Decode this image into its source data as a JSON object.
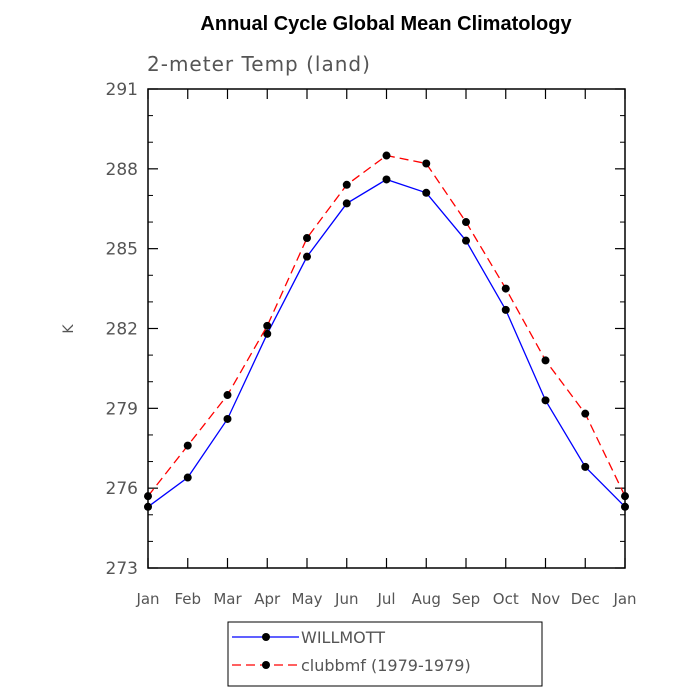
{
  "chart_data": {
    "type": "line",
    "title": "Annual Cycle Global Mean Climatology",
    "subtitle": "2-meter Temp (land)",
    "ylabel": "K",
    "xlabel": "",
    "ylim": [
      273,
      291
    ],
    "yticks": [
      273,
      276,
      279,
      282,
      285,
      288,
      291
    ],
    "yticks_labels": [
      "273",
      "276",
      "279",
      "282",
      "285",
      "288",
      "291"
    ],
    "categories": [
      "Jan",
      "Feb",
      "Mar",
      "Apr",
      "May",
      "Jun",
      "Jul",
      "Aug",
      "Sep",
      "Oct",
      "Nov",
      "Dec",
      "Jan"
    ],
    "grid": false,
    "legend_position": "bottom",
    "series": [
      {
        "name": "WILLMOTT",
        "color": "#0000ff",
        "dash": "solid",
        "marker": "circle",
        "values": [
          275.3,
          276.4,
          278.6,
          281.8,
          284.7,
          286.7,
          287.6,
          287.1,
          285.3,
          282.7,
          279.3,
          276.8,
          275.3
        ]
      },
      {
        "name": "clubbmf (1979-1979)",
        "color": "#ff0000",
        "dash": "dashed",
        "marker": "circle",
        "values": [
          275.7,
          277.6,
          279.5,
          282.1,
          285.4,
          287.4,
          288.5,
          288.2,
          286.0,
          283.5,
          280.8,
          278.8,
          275.7
        ]
      }
    ]
  }
}
